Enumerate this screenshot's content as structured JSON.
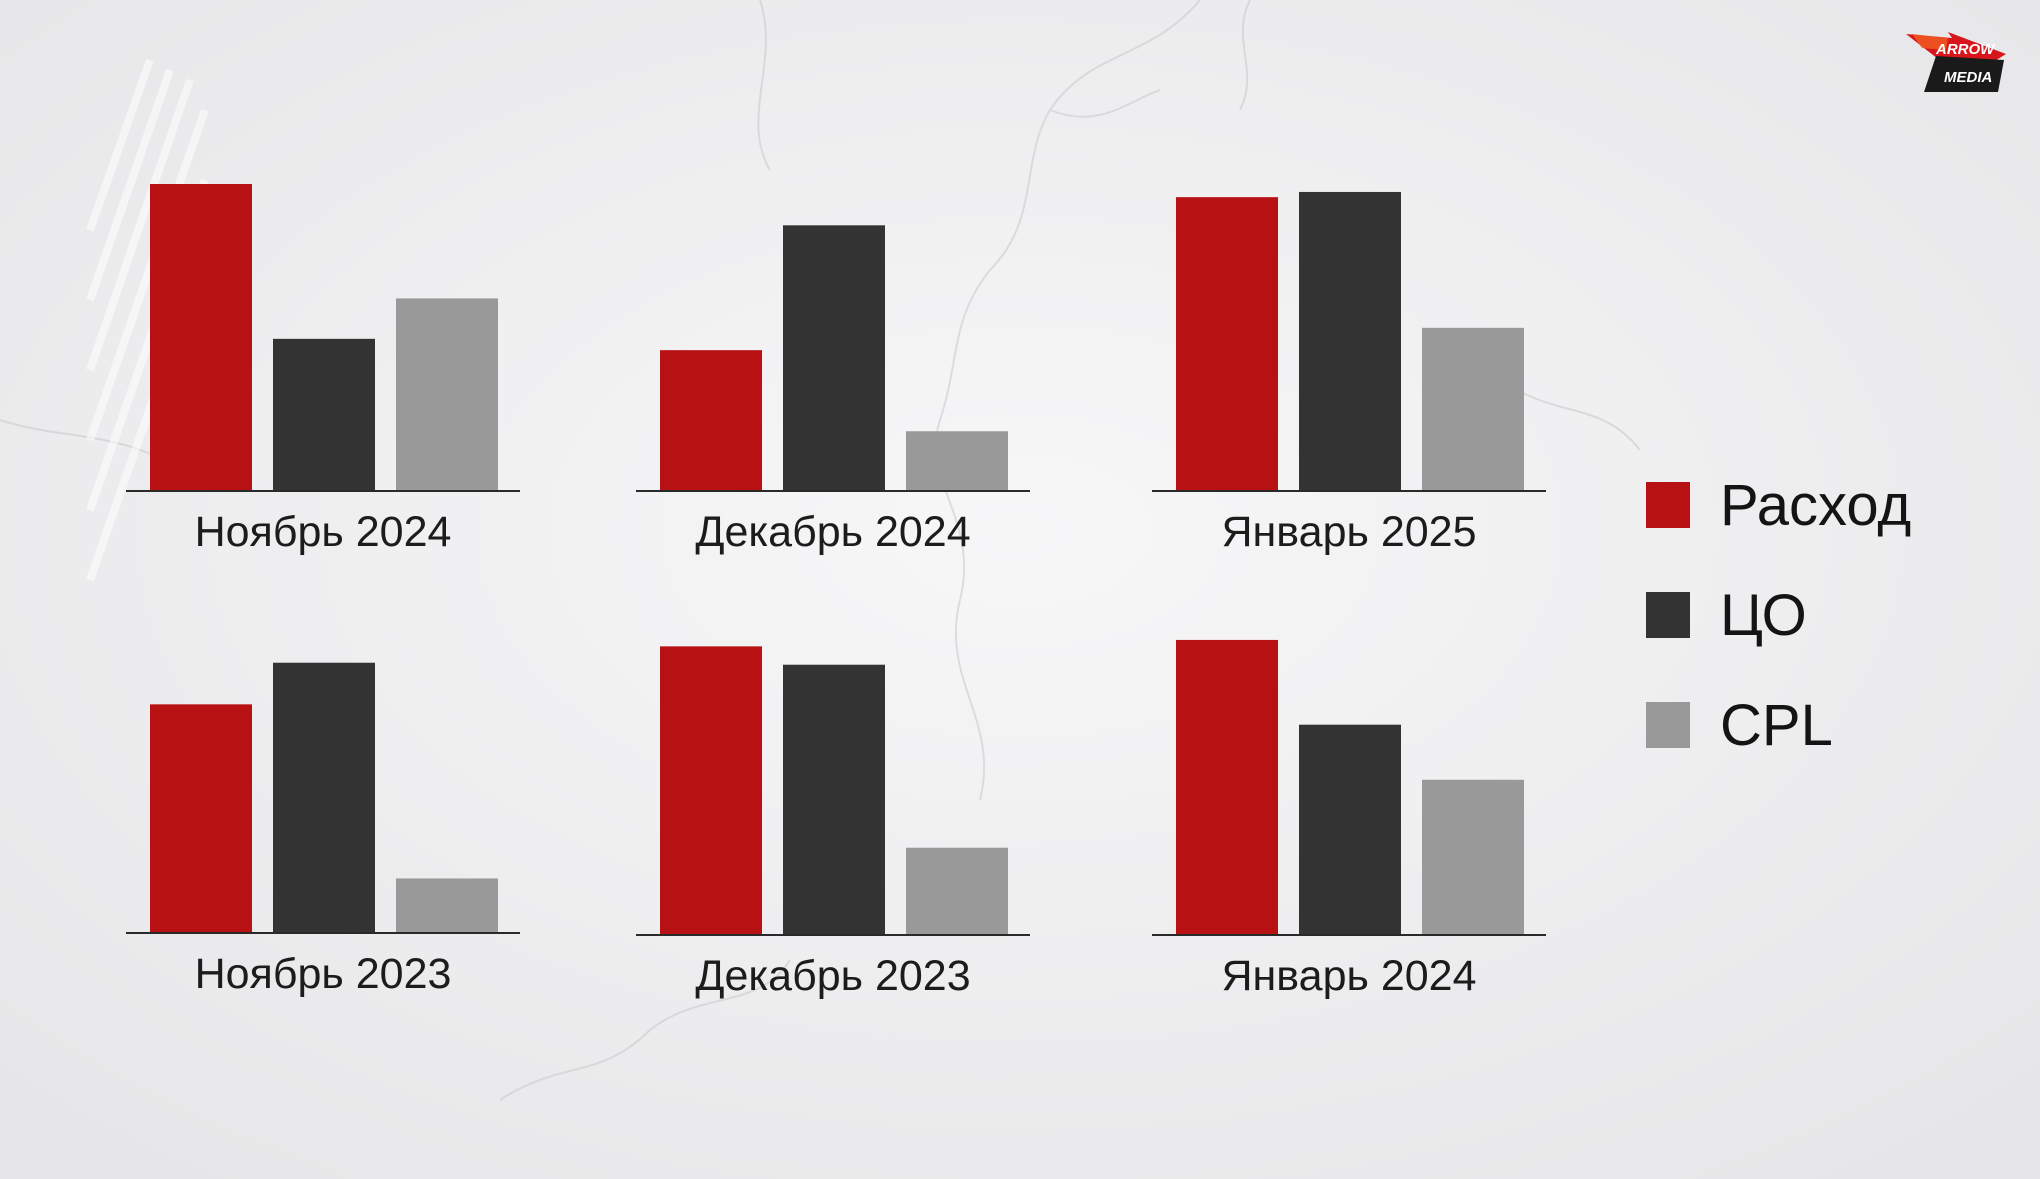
{
  "logo": {
    "line1": "ARROW",
    "line2": "MEDIA"
  },
  "colors": {
    "Расход": "#b81113",
    "ЦО": "#333333",
    "CPL": "#999999"
  },
  "legend": [
    {
      "name": "Расход",
      "color": "#b81113"
    },
    {
      "name": "ЦО",
      "color": "#333333"
    },
    {
      "name": "CPL",
      "color": "#999999"
    }
  ],
  "chart_data": [
    {
      "type": "bar",
      "title": "Ноябрь 2024",
      "categories": [
        "Расход",
        "ЦО",
        "CPL"
      ],
      "values": [
        100,
        49.4,
        62.6
      ],
      "ylim": [
        0,
        100
      ],
      "grid": false
    },
    {
      "type": "bar",
      "title": "Декабрь 2024",
      "categories": [
        "Расход",
        "ЦО",
        "CPL"
      ],
      "values": [
        45.7,
        86.5,
        19.2
      ],
      "ylim": [
        0,
        100
      ],
      "grid": false
    },
    {
      "type": "bar",
      "title": "Январь 2025",
      "categories": [
        "Расход",
        "ЦО",
        "CPL"
      ],
      "values": [
        95.7,
        97.4,
        53.0
      ],
      "ylim": [
        0,
        100
      ],
      "grid": false
    },
    {
      "type": "bar",
      "title": "Ноябрь 2023",
      "categories": [
        "Расход",
        "ЦО",
        "CPL"
      ],
      "values": [
        74.4,
        88.0,
        17.5
      ],
      "ylim": [
        0,
        100
      ],
      "grid": false
    },
    {
      "type": "bar",
      "title": "Декабрь 2023",
      "categories": [
        "Расход",
        "ЦО",
        "CPL"
      ],
      "values": [
        94.0,
        88.0,
        28.2
      ],
      "ylim": [
        0,
        100
      ],
      "grid": false
    },
    {
      "type": "bar",
      "title": "Январь 2024",
      "categories": [
        "Расход",
        "ЦО",
        "CPL"
      ],
      "values": [
        96.1,
        68.4,
        50.4
      ],
      "ylim": [
        0,
        100
      ],
      "grid": false
    }
  ]
}
